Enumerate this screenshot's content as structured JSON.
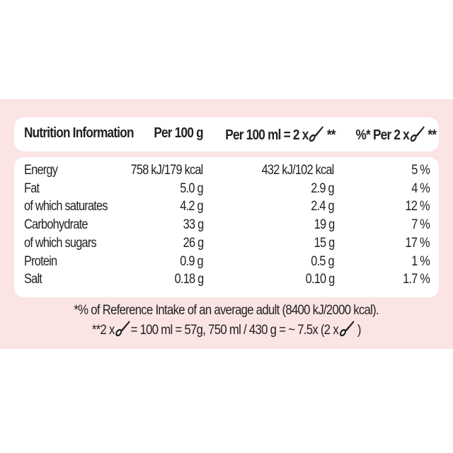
{
  "header": {
    "title": "Nutrition Information",
    "col1": "Per 100 g",
    "col2_prefix": "Per 100 ml = 2 x",
    "col2_suffix": "**",
    "col3_prefix": "%* Per 2 x",
    "col3_suffix": "**",
    "icon": "spoon-icon"
  },
  "rows": [
    {
      "label": "Energy",
      "per100g": "758 kJ/179 kcal",
      "per100ml": "432 kJ/102 kcal",
      "ri": "5 %"
    },
    {
      "label": "Fat",
      "per100g": "5.0 g",
      "per100ml": "2.9 g",
      "ri": "4 %"
    },
    {
      "label": " of which saturates",
      "per100g": "4.2 g",
      "per100ml": "2.4 g",
      "ri": "12 %"
    },
    {
      "label": "Carbohydrate",
      "per100g": "33 g",
      "per100ml": "19 g",
      "ri": "7 %"
    },
    {
      "label": " of which sugars",
      "per100g": "26 g",
      "per100ml": "15 g",
      "ri": "17 %"
    },
    {
      "label": "Protein",
      "per100g": "0.9 g",
      "per100ml": "0.5 g",
      "ri": "1 %"
    },
    {
      "label": "Salt",
      "per100g": "0.18 g",
      "per100ml": "0.10 g",
      "ri": "1.7 %"
    }
  ],
  "footnotes": {
    "line1": "*% of Reference Intake of an average adult (8400 kJ/2000 kcal).",
    "line2_a": "**2 x",
    "line2_b": "= 100 ml = 57g, 750 ml / 430 g = ~ 7.5x (2 x",
    "line2_c": ")"
  },
  "colors": {
    "background": "#fbe4e4",
    "panel": "#ffffff",
    "text": "#222222"
  }
}
